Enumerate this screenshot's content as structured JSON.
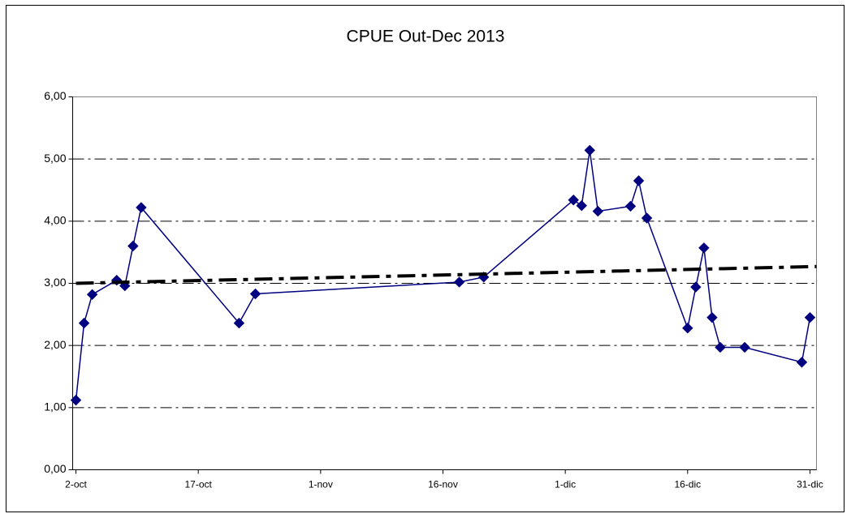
{
  "chart_data": {
    "type": "line",
    "title": "CPUE Out-Dec 2013",
    "series": [
      {
        "color": "#000080",
        "marker": "diamond",
        "x": [
          275,
          276,
          277,
          280,
          281,
          282,
          283,
          295,
          297,
          322,
          325,
          336,
          337,
          338,
          339,
          343,
          344,
          345,
          350,
          351,
          352,
          353,
          354,
          357,
          364,
          365
        ],
        "values": [
          1.12,
          2.36,
          2.82,
          3.05,
          2.96,
          3.6,
          4.22,
          2.36,
          2.83,
          3.02,
          3.1,
          4.34,
          4.25,
          5.14,
          4.16,
          4.24,
          4.65,
          4.05,
          2.28,
          2.94,
          3.57,
          2.45,
          1.97,
          1.97,
          1.73,
          2.45
        ]
      },
      {
        "color": "#000000",
        "style": "dash-dot",
        "x": [
          275,
          365.8
        ],
        "values": [
          3.0,
          3.27
        ]
      }
    ],
    "xlim": [
      274.6,
      365.8
    ],
    "xticks": [
      {
        "value": 275,
        "label": "2-oct"
      },
      {
        "value": 290,
        "label": "17-oct"
      },
      {
        "value": 305,
        "label": "1-nov"
      },
      {
        "value": 320,
        "label": "16-nov"
      },
      {
        "value": 335,
        "label": "1-dic"
      },
      {
        "value": 350,
        "label": "16-dic"
      },
      {
        "value": 365,
        "label": "31-dic"
      }
    ],
    "ylim": [
      0,
      6
    ],
    "yticks": [
      {
        "value": 0,
        "label": "0,00"
      },
      {
        "value": 1,
        "label": "1,00"
      },
      {
        "value": 2,
        "label": "2,00"
      },
      {
        "value": 3,
        "label": "3,00"
      },
      {
        "value": 4,
        "label": "4,00"
      },
      {
        "value": 5,
        "label": "5,00"
      },
      {
        "value": 6,
        "label": "6,00"
      }
    ],
    "grid": true
  }
}
